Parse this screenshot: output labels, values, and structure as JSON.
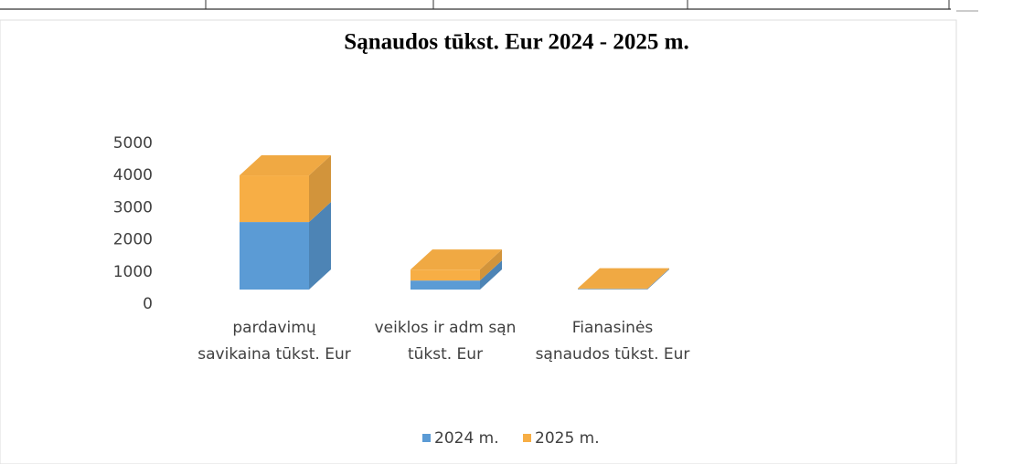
{
  "chart_data": {
    "type": "bar3d_stacked",
    "title": "Sąnaudos tūkst. Eur 2024 - 2025 m.",
    "categories": [
      "pardavimų savikaina tūkst. Eur",
      "veiklos ir adm sąn tūkst. Eur",
      "Fianasinės sąnaudos tūkst. Eur"
    ],
    "series": [
      {
        "name": "2024 m.",
        "color": "#5b9bd5",
        "values": [
          2100,
          280,
          20
        ]
      },
      {
        "name": "2025 m.",
        "color": "#f7ae45",
        "values": [
          1450,
          340,
          20
        ]
      }
    ],
    "ylim": [
      0,
      5000
    ],
    "yticks": [
      0,
      1000,
      2000,
      3000,
      4000,
      5000
    ],
    "grid": false,
    "legend": "bottom"
  }
}
